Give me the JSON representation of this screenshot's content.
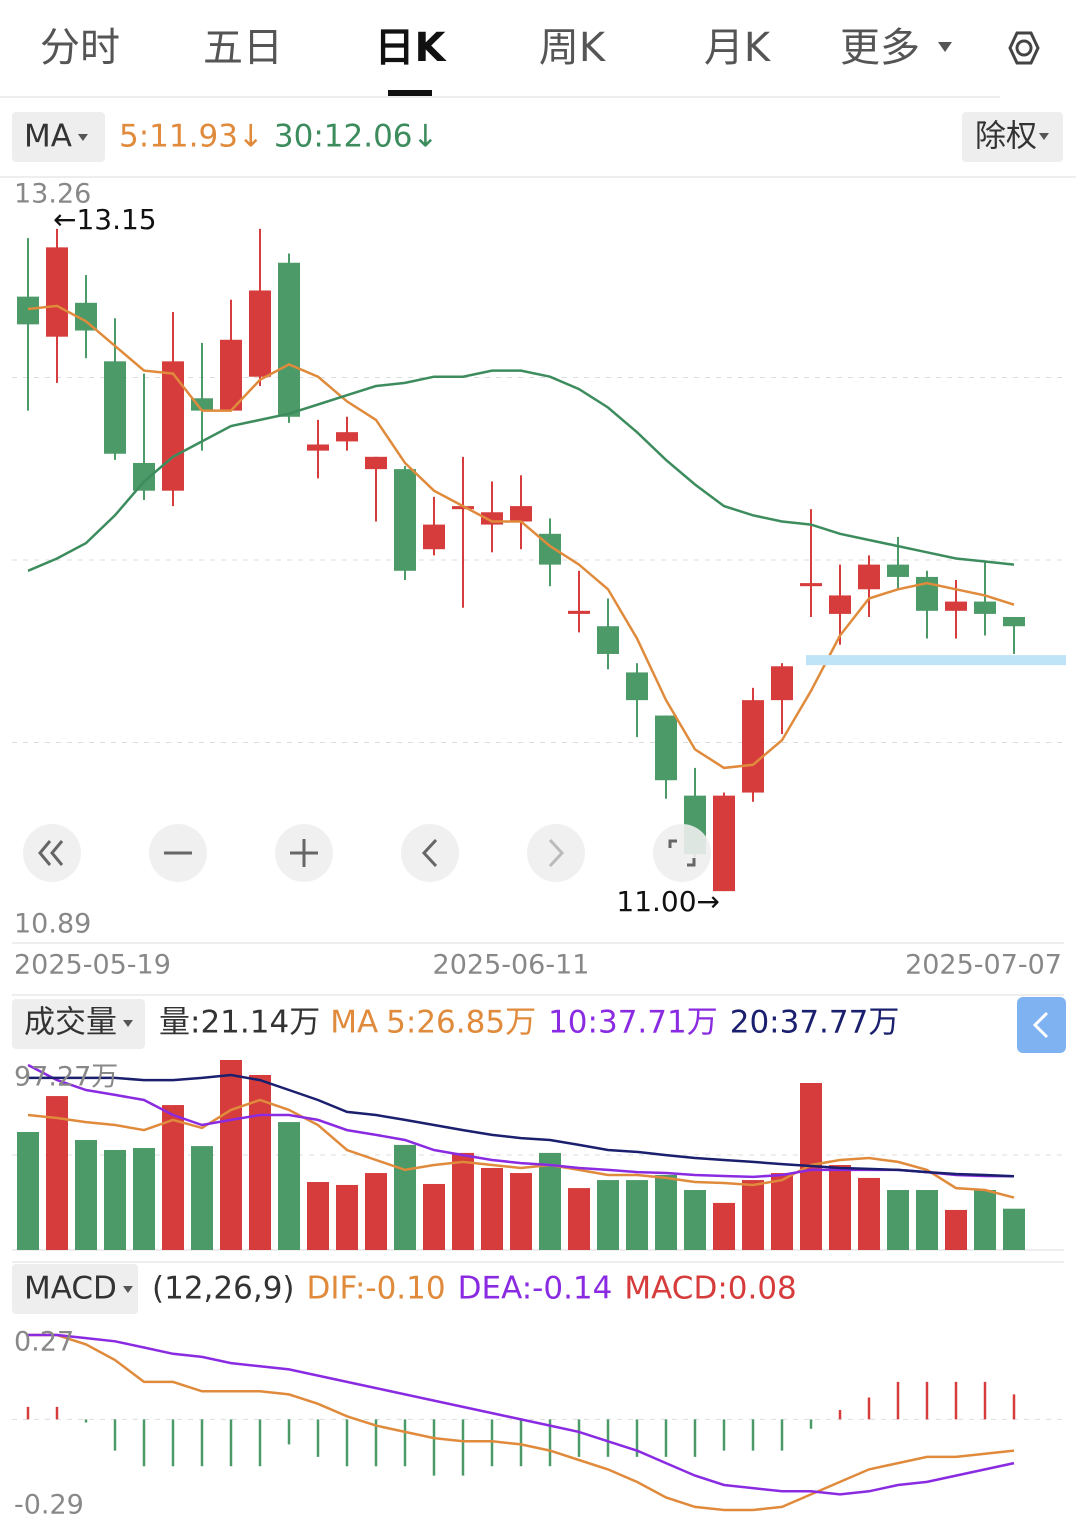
{
  "ui": {
    "tabs": [
      "分时",
      "五日",
      "日K",
      "周K",
      "月K",
      "更多"
    ],
    "active_tab": 2,
    "adjust_button": "除权"
  },
  "chart_data": [
    {
      "type": "candlestick",
      "indicator": "MA",
      "categories": [
        "2025-05-19",
        null,
        null,
        null,
        null,
        null,
        null,
        null,
        null,
        null,
        null,
        null,
        null,
        null,
        null,
        null,
        "2025-06-11",
        null,
        null,
        null,
        null,
        null,
        null,
        null,
        null,
        null,
        null,
        null,
        null,
        null,
        null,
        null,
        null,
        null,
        "2025-07-07"
      ],
      "open": [
        12.93,
        12.8,
        12.91,
        12.72,
        12.39,
        12.3,
        12.6,
        12.56,
        12.67,
        13.04,
        12.43,
        12.46,
        12.37,
        12.37,
        12.11,
        12.24,
        12.19,
        12.2,
        12.16,
        11.9,
        11.86,
        11.71,
        11.57,
        11.31,
        11.0,
        11.32,
        11.62,
        11.99,
        11.9,
        11.98,
        12.06,
        12.02,
        11.91,
        11.94,
        11.89
      ],
      "high": [
        13.12,
        13.15,
        13.0,
        12.86,
        12.68,
        12.88,
        12.78,
        12.92,
        13.15,
        13.07,
        12.53,
        12.54,
        12.41,
        12.38,
        12.28,
        12.41,
        12.33,
        12.35,
        12.21,
        12.04,
        11.95,
        11.74,
        11.57,
        11.4,
        11.32,
        11.66,
        11.74,
        12.24,
        12.06,
        12.09,
        12.15,
        12.04,
        12.01,
        12.07,
        11.89
      ],
      "low": [
        12.56,
        12.65,
        12.73,
        12.4,
        12.27,
        12.25,
        12.43,
        12.56,
        12.64,
        12.52,
        12.34,
        12.43,
        12.2,
        12.01,
        12.09,
        11.92,
        12.1,
        12.11,
        11.99,
        11.84,
        11.72,
        11.5,
        11.3,
        11.11,
        11.0,
        11.29,
        11.51,
        11.89,
        11.8,
        11.89,
        11.98,
        11.82,
        11.82,
        11.83,
        11.77
      ],
      "close": [
        12.84,
        13.09,
        12.82,
        12.42,
        12.3,
        12.72,
        12.56,
        12.79,
        12.95,
        12.54,
        12.45,
        12.49,
        12.41,
        12.04,
        12.19,
        12.25,
        12.23,
        12.25,
        12.06,
        11.91,
        11.77,
        11.62,
        11.36,
        11.12,
        11.31,
        11.62,
        11.73,
        12.0,
        11.96,
        12.06,
        12.02,
        11.91,
        11.94,
        11.9,
        11.86
      ],
      "up_color": "#d63c3c",
      "down_color": "#4b9a68",
      "series": [
        {
          "name": "5:11.93↓",
          "color": "#e08a3c",
          "values": [
            12.89,
            12.9,
            12.85,
            12.77,
            12.69,
            12.68,
            12.56,
            12.56,
            12.66,
            12.71,
            12.67,
            12.59,
            12.53,
            12.39,
            12.3,
            12.25,
            12.2,
            12.2,
            12.12,
            12.06,
            11.98,
            11.82,
            11.62,
            11.46,
            11.4,
            11.41,
            11.49,
            11.65,
            11.83,
            11.95,
            11.98,
            12.0,
            11.98,
            11.96,
            11.93
          ]
        },
        {
          "name": "30:12.06↓",
          "color": "#3d8c5e",
          "values": [
            12.04,
            12.08,
            12.13,
            12.22,
            12.33,
            12.41,
            12.46,
            12.51,
            12.53,
            12.55,
            12.58,
            12.61,
            12.64,
            12.65,
            12.67,
            12.67,
            12.69,
            12.69,
            12.67,
            12.63,
            12.57,
            12.49,
            12.4,
            12.32,
            12.25,
            12.22,
            12.2,
            12.19,
            12.16,
            12.14,
            12.12,
            12.1,
            12.08,
            12.07,
            12.06
          ]
        }
      ],
      "ylim": [
        10.89,
        13.26
      ],
      "yticks": [
        13.26,
        10.89
      ],
      "grid": true,
      "high_label": "←13.15",
      "low_label": "11.00→",
      "drawn_line": {
        "value": 11.75,
        "from_index": 27,
        "color": "#bfe3f7"
      }
    },
    {
      "type": "bar",
      "indicator": "成交量",
      "volume_label": "量:21.14万",
      "ma_prefix": "MA",
      "values": [
        60.4,
        78.8,
        56.3,
        51.2,
        52.2,
        74.2,
        53.2,
        97.27,
        89.6,
        65.5,
        34.8,
        33.3,
        39.4,
        53.8,
        33.8,
        49.7,
        42.0,
        39.4,
        49.7,
        31.7,
        35.8,
        35.8,
        38.4,
        30.7,
        24.1,
        35.8,
        39.4,
        85.5,
        43.5,
        36.9,
        30.7,
        30.7,
        20.5,
        30.7,
        21.14
      ],
      "series": [
        {
          "name": "5:26.85万",
          "color": "#e08a3c",
          "values": [
            69.1,
            67.6,
            65.5,
            64.0,
            61.4,
            66.6,
            62.5,
            71.7,
            76.8,
            71.7,
            64.0,
            51.2,
            46.1,
            41.0,
            43.5,
            45.1,
            43.5,
            42.0,
            43.5,
            41.0,
            38.4,
            38.4,
            36.9,
            34.8,
            34.3,
            33.3,
            35.8,
            43.5,
            46.1,
            47.1,
            45.1,
            41.0,
            31.7,
            30.7,
            26.85
          ]
        },
        {
          "name": "10:37.71万",
          "color": "#8a2be2",
          "values": [
            94.7,
            87.0,
            81.9,
            79.4,
            76.8,
            69.1,
            64.0,
            66.6,
            69.1,
            69.1,
            66.6,
            61.4,
            58.9,
            56.3,
            51.2,
            48.6,
            46.1,
            44.5,
            43.5,
            42.0,
            41.0,
            39.9,
            39.4,
            38.4,
            37.9,
            37.4,
            38.4,
            41.0,
            41.0,
            41.0,
            41.0,
            39.9,
            38.4,
            37.9,
            37.71
          ]
        },
        {
          "name": "20:37.77万",
          "color": "#1a1f6e",
          "values": [
            88.1,
            88.1,
            88.1,
            88.1,
            87.0,
            87.0,
            88.1,
            89.6,
            87.0,
            81.9,
            76.8,
            70.7,
            69.1,
            66.6,
            64.0,
            61.4,
            58.9,
            57.3,
            56.3,
            53.8,
            51.2,
            50.2,
            48.6,
            47.1,
            46.1,
            45.1,
            44.0,
            43.0,
            42.0,
            41.5,
            41.0,
            39.9,
            38.9,
            38.4,
            37.77
          ]
        }
      ],
      "ylim": [
        0,
        97.27
      ],
      "yticks": [
        {
          "value": 97.27,
          "label": "97.27万"
        }
      ],
      "grid": true
    },
    {
      "type": "macd",
      "indicator": "MACD",
      "params": "(12,26,9)",
      "histogram": {
        "name": "MACD:0.08",
        "up_color": "#d63c3c",
        "down_color": "#4b9a68",
        "values": [
          0.04,
          0.04,
          -0.01,
          -0.1,
          -0.15,
          -0.15,
          -0.15,
          -0.15,
          -0.15,
          -0.08,
          -0.12,
          -0.15,
          -0.15,
          -0.15,
          -0.18,
          -0.18,
          -0.15,
          -0.15,
          -0.15,
          -0.12,
          -0.12,
          -0.12,
          -0.12,
          -0.12,
          -0.1,
          -0.1,
          -0.1,
          -0.03,
          0.03,
          0.07,
          0.12,
          0.12,
          0.12,
          0.12,
          0.08
        ]
      },
      "series": [
        {
          "name": "DIF:-0.10",
          "color": "#e08a3c",
          "values": [
            0.27,
            0.27,
            0.24,
            0.19,
            0.12,
            0.12,
            0.09,
            0.09,
            0.09,
            0.08,
            0.05,
            0.01,
            -0.02,
            -0.04,
            -0.06,
            -0.07,
            -0.07,
            -0.08,
            -0.1,
            -0.13,
            -0.16,
            -0.2,
            -0.25,
            -0.28,
            -0.29,
            -0.29,
            -0.28,
            -0.24,
            -0.2,
            -0.16,
            -0.14,
            -0.12,
            -0.12,
            -0.11,
            -0.1
          ]
        },
        {
          "name": "DEA:-0.14",
          "color": "#8a2be2",
          "values": [
            0.27,
            0.27,
            0.26,
            0.25,
            0.23,
            0.21,
            0.2,
            0.18,
            0.17,
            0.16,
            0.14,
            0.12,
            0.1,
            0.08,
            0.06,
            0.04,
            0.02,
            0.0,
            -0.02,
            -0.04,
            -0.07,
            -0.1,
            -0.14,
            -0.18,
            -0.21,
            -0.22,
            -0.23,
            -0.23,
            -0.24,
            -0.23,
            -0.21,
            -0.2,
            -0.18,
            -0.16,
            -0.14
          ]
        }
      ],
      "ylim": [
        -0.29,
        0.27
      ],
      "yticks": [
        0.27,
        -0.29
      ],
      "grid": true
    }
  ]
}
